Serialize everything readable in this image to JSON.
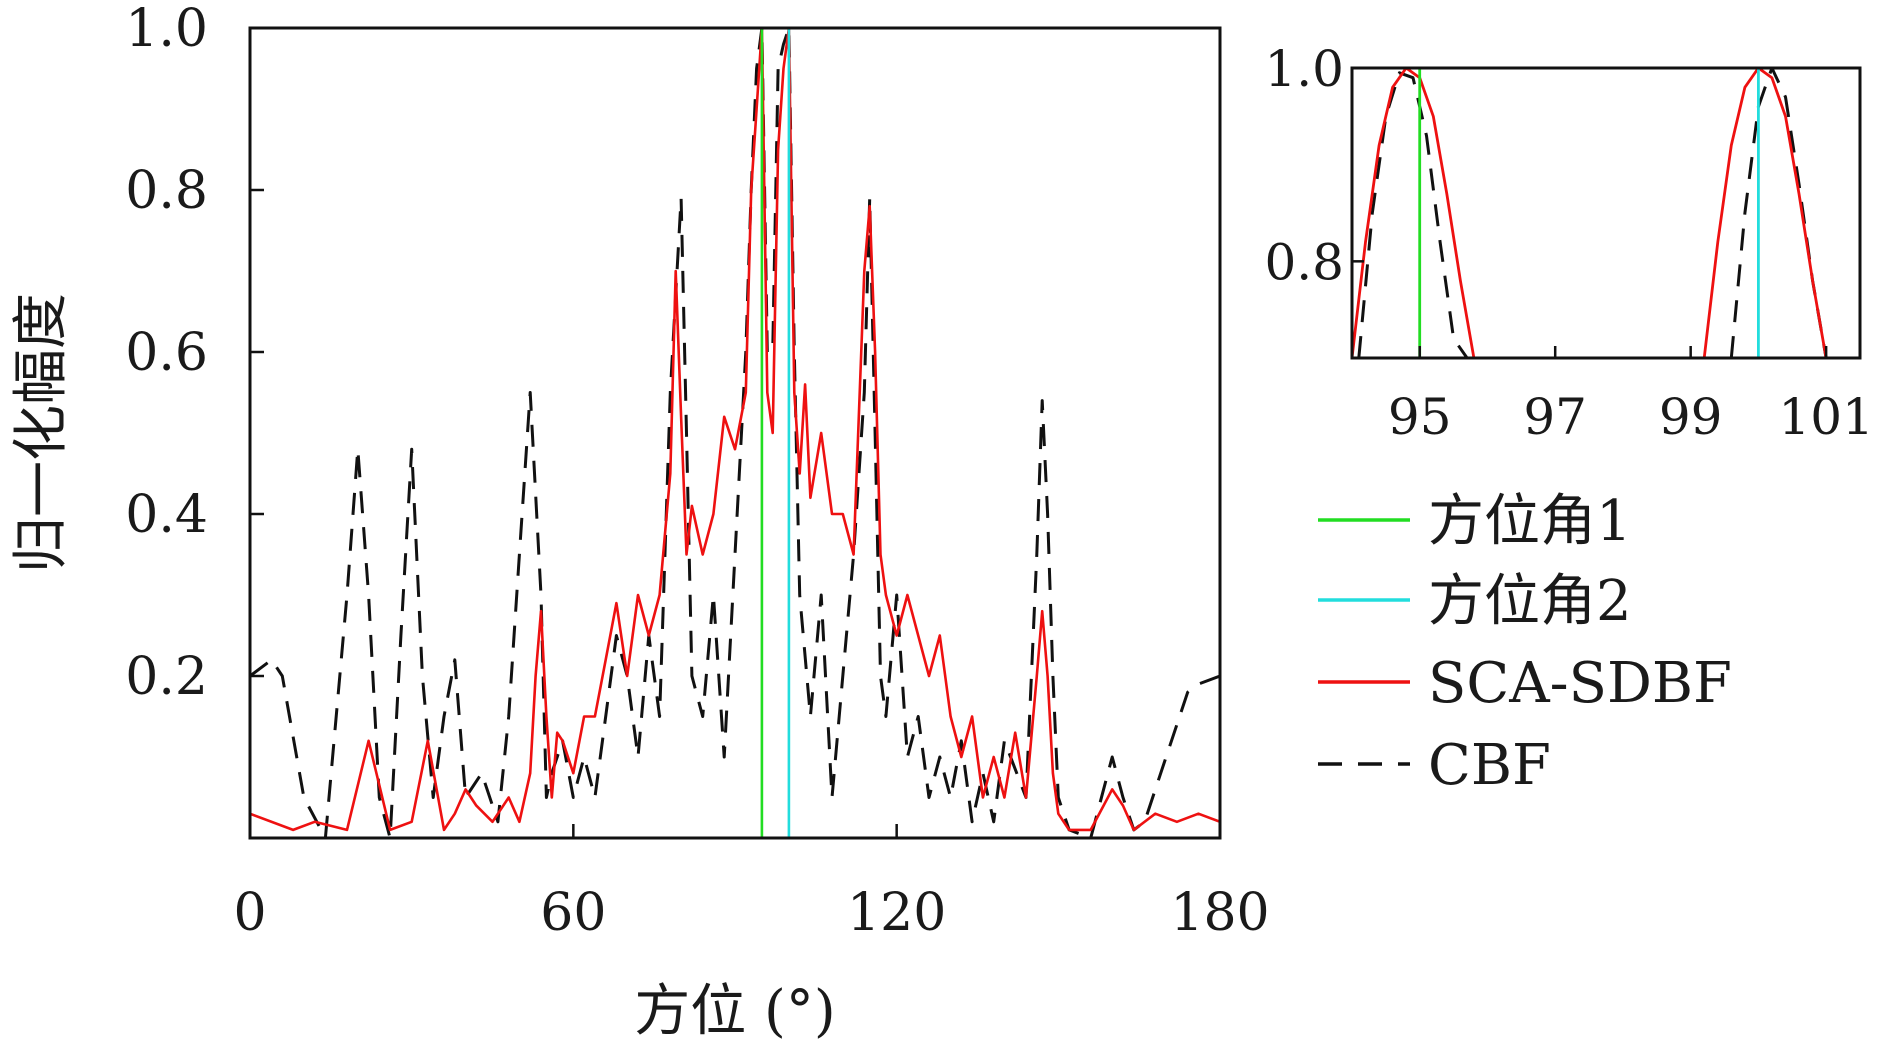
{
  "chart_data": [
    {
      "type": "line",
      "xlabel": "方位 (°)",
      "ylabel": "归一化幅度",
      "xlim": [
        0,
        180
      ],
      "ylim": [
        0,
        1
      ],
      "x_ticks": [
        "0",
        "60",
        "120",
        "180"
      ],
      "y_ticks": [
        "0.2",
        "0.4",
        "0.6",
        "0.8",
        "1.0"
      ],
      "grid": false,
      "legend_position": "right",
      "series": [
        {
          "name": "方位角1",
          "color": "#22dd22",
          "style": "solid",
          "x": [
            95,
            95
          ],
          "y": [
            0,
            1.0
          ]
        },
        {
          "name": "方位角2",
          "color": "#22dddd",
          "style": "solid",
          "x": [
            100,
            100
          ],
          "y": [
            0,
            1.0
          ]
        },
        {
          "name": "SCA-SDBF",
          "color": "#ee1111",
          "style": "solid",
          "x": [
            0,
            8,
            12,
            18,
            22,
            26,
            30,
            33,
            36,
            38,
            40,
            42,
            45,
            48,
            50,
            52,
            53,
            54,
            55,
            56,
            57,
            58,
            60,
            62,
            64,
            66,
            68,
            70,
            72,
            74,
            76,
            78,
            79,
            80,
            81,
            82,
            84,
            86,
            88,
            90,
            92,
            93,
            94,
            95,
            96,
            97,
            98,
            99,
            100,
            101,
            102,
            103,
            104,
            106,
            108,
            110,
            112,
            114,
            115,
            116,
            117,
            118,
            120,
            122,
            124,
            126,
            128,
            130,
            132,
            134,
            136,
            138,
            140,
            142,
            144,
            146,
            147,
            148,
            149,
            150,
            152,
            156,
            160,
            162,
            164,
            168,
            172,
            176,
            180
          ],
          "y": [
            0.03,
            0.01,
            0.02,
            0.01,
            0.12,
            0.01,
            0.02,
            0.12,
            0.01,
            0.03,
            0.06,
            0.04,
            0.02,
            0.05,
            0.02,
            0.08,
            0.2,
            0.28,
            0.15,
            0.05,
            0.13,
            0.12,
            0.08,
            0.15,
            0.15,
            0.22,
            0.29,
            0.2,
            0.3,
            0.25,
            0.3,
            0.45,
            0.7,
            0.52,
            0.35,
            0.41,
            0.35,
            0.4,
            0.52,
            0.48,
            0.55,
            0.8,
            0.9,
            1.0,
            0.55,
            0.5,
            0.85,
            0.95,
            1.0,
            0.55,
            0.45,
            0.56,
            0.42,
            0.5,
            0.4,
            0.4,
            0.35,
            0.7,
            0.78,
            0.6,
            0.35,
            0.3,
            0.25,
            0.3,
            0.25,
            0.2,
            0.25,
            0.15,
            0.1,
            0.15,
            0.05,
            0.1,
            0.05,
            0.13,
            0.05,
            0.2,
            0.28,
            0.2,
            0.08,
            0.03,
            0.01,
            0.01,
            0.06,
            0.04,
            0.01,
            0.03,
            0.02,
            0.03,
            0.02
          ]
        },
        {
          "name": "CBF",
          "color": "#111111",
          "style": "dashed",
          "x": [
            0,
            4,
            6,
            10,
            14,
            18,
            20,
            22,
            24,
            26,
            28,
            30,
            32,
            34,
            36,
            38,
            40,
            43,
            46,
            48,
            50,
            52,
            54,
            55,
            56,
            58,
            60,
            62,
            64,
            66,
            68,
            70,
            72,
            74,
            76,
            78,
            80,
            81,
            82,
            84,
            86,
            88,
            90,
            92,
            93,
            94,
            95,
            96,
            97,
            98,
            99,
            100,
            101,
            102,
            104,
            106,
            108,
            110,
            112,
            114,
            115,
            116,
            117,
            118,
            120,
            122,
            124,
            126,
            128,
            130,
            132,
            134,
            136,
            138,
            140,
            144,
            146,
            147,
            148,
            149,
            150,
            152,
            156,
            160,
            162,
            164,
            166,
            170,
            174,
            176,
            180
          ],
          "y": [
            0.2,
            0.22,
            0.2,
            0.05,
            0.0,
            0.3,
            0.48,
            0.3,
            0.05,
            0.0,
            0.25,
            0.48,
            0.2,
            0.05,
            0.15,
            0.22,
            0.05,
            0.08,
            0.02,
            0.15,
            0.35,
            0.55,
            0.3,
            0.05,
            0.08,
            0.12,
            0.05,
            0.1,
            0.05,
            0.15,
            0.25,
            0.2,
            0.1,
            0.25,
            0.15,
            0.55,
            0.79,
            0.5,
            0.2,
            0.15,
            0.3,
            0.1,
            0.35,
            0.6,
            0.8,
            0.95,
            1.0,
            0.6,
            0.6,
            0.95,
            0.98,
            1.0,
            0.6,
            0.3,
            0.15,
            0.3,
            0.05,
            0.2,
            0.35,
            0.55,
            0.79,
            0.5,
            0.2,
            0.15,
            0.3,
            0.1,
            0.15,
            0.05,
            0.1,
            0.05,
            0.12,
            0.02,
            0.08,
            0.02,
            0.12,
            0.05,
            0.35,
            0.54,
            0.4,
            0.2,
            0.05,
            0.01,
            0.0,
            0.1,
            0.05,
            0.01,
            0.02,
            0.1,
            0.18,
            0.19,
            0.2
          ]
        }
      ]
    },
    {
      "type": "line",
      "title": "",
      "xlim": [
        94,
        101.5
      ],
      "ylim": [
        0.7,
        1.0
      ],
      "x_ticks": [
        "95",
        "97",
        "99",
        "101"
      ],
      "y_ticks": [
        "0.8",
        "1.0"
      ],
      "series": [
        {
          "name": "方位角1",
          "color": "#22dd22",
          "style": "solid",
          "x": [
            95,
            95
          ],
          "y": [
            0.7,
            1.0
          ]
        },
        {
          "name": "方位角2",
          "color": "#22dddd",
          "style": "solid",
          "x": [
            100,
            100
          ],
          "y": [
            0.7,
            1.0
          ]
        },
        {
          "name": "SCA-SDBF",
          "color": "#ee1111",
          "style": "solid",
          "x": [
            94.0,
            94.2,
            94.4,
            94.6,
            94.8,
            95.0,
            95.2,
            95.4,
            95.6,
            95.8,
            99.2,
            99.4,
            99.6,
            99.8,
            100.0,
            100.2,
            100.4,
            100.6,
            100.8,
            101.0
          ],
          "y": [
            0.7,
            0.82,
            0.92,
            0.98,
            1.0,
            0.99,
            0.95,
            0.87,
            0.78,
            0.7,
            0.7,
            0.82,
            0.92,
            0.98,
            1.0,
            0.99,
            0.95,
            0.87,
            0.78,
            0.7
          ]
        },
        {
          "name": "CBF",
          "color": "#111111",
          "style": "dashed",
          "x": [
            94.1,
            94.3,
            94.5,
            94.7,
            94.9,
            95.1,
            95.3,
            95.5,
            95.7,
            99.6,
            99.8,
            100.0,
            100.2,
            100.4,
            100.6,
            100.8,
            101.0
          ],
          "y": [
            0.7,
            0.85,
            0.95,
            0.995,
            0.99,
            0.93,
            0.82,
            0.72,
            0.7,
            0.7,
            0.85,
            0.96,
            1.0,
            0.97,
            0.88,
            0.78,
            0.7
          ]
        }
      ]
    }
  ]
}
